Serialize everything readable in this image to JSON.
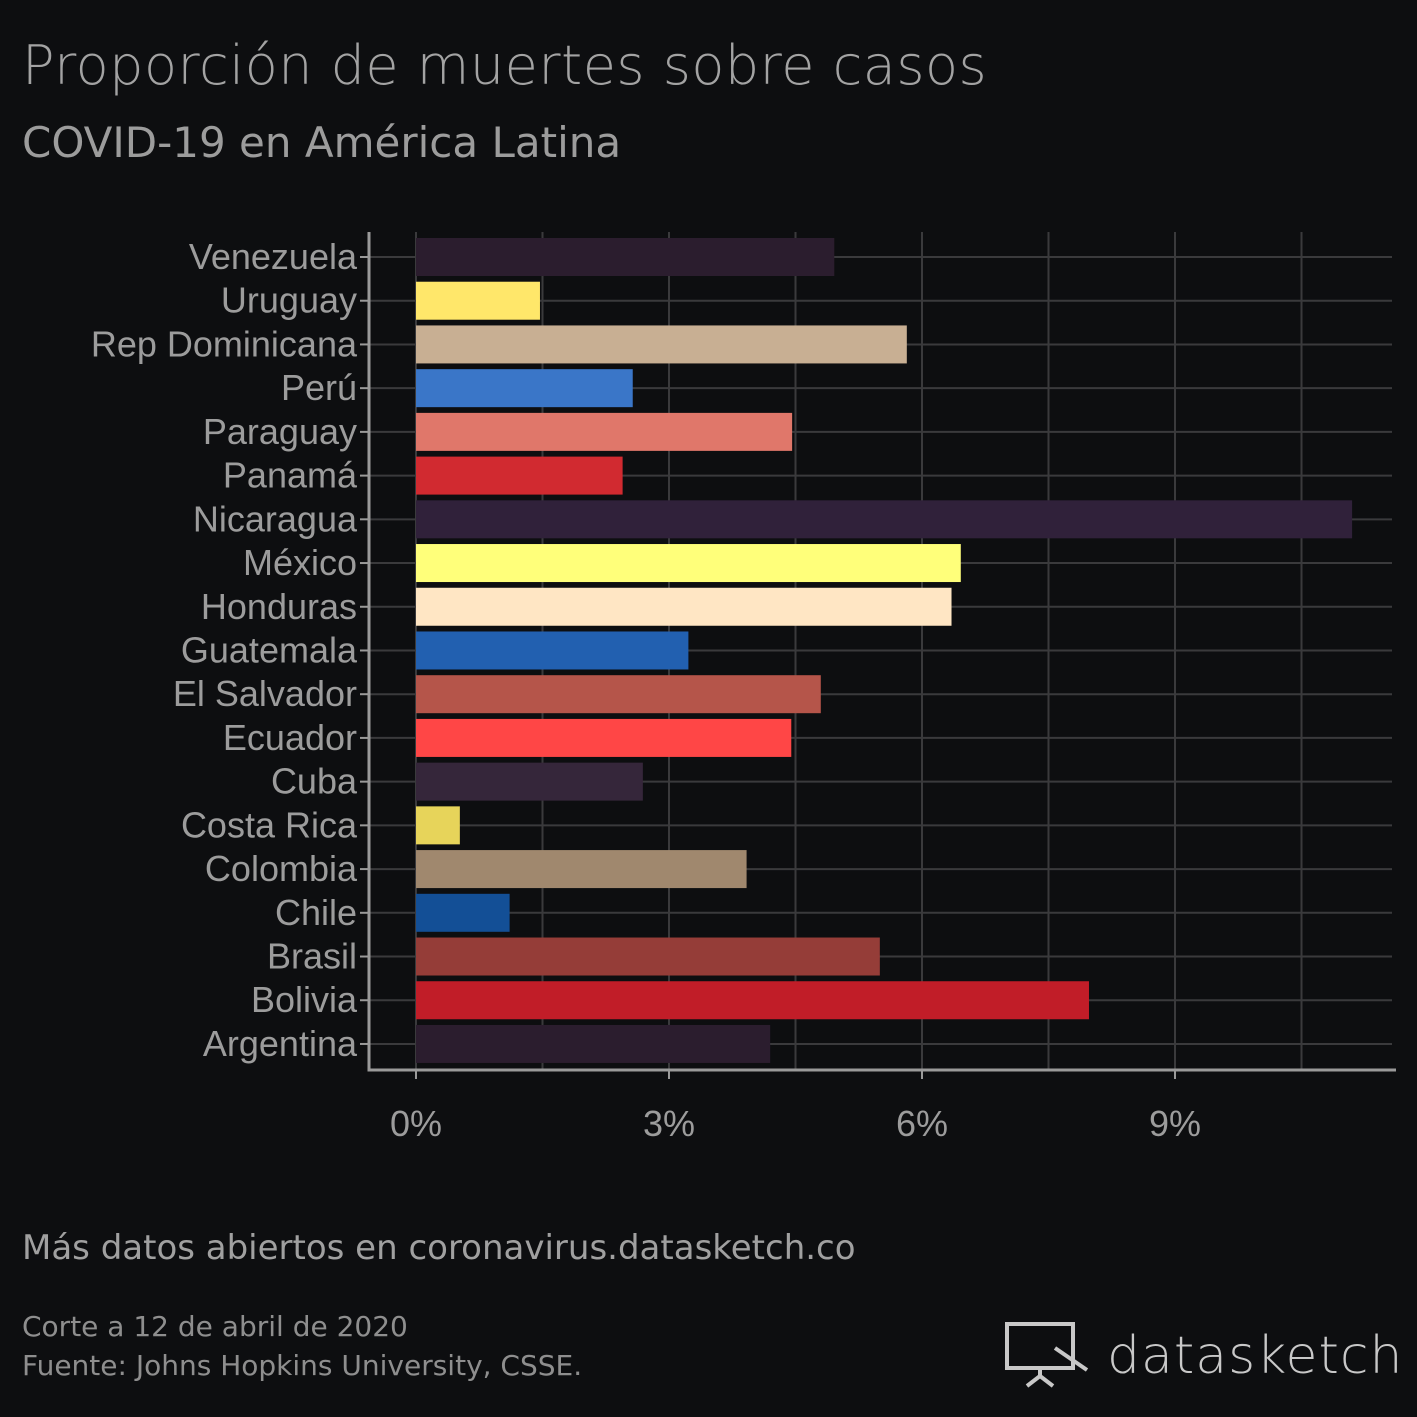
{
  "header": {
    "title": "Proporción de muertes sobre casos",
    "subtitle": "COVID-19 en América Latina"
  },
  "footer": {
    "more_data": "Más datos abiertos en coronavirus.datasketch.co",
    "cut_date": "Corte a 12 de abril de 2020",
    "source": "Fuente: Johns Hopkins University, CSSE.",
    "brand": "datasketch"
  },
  "chart_data": {
    "type": "bar",
    "orientation": "horizontal",
    "title": "Proporción de muertes sobre casos",
    "subtitle": "COVID-19 en América Latina",
    "xlabel": "",
    "ylabel": "",
    "xlim": [
      0,
      11.6
    ],
    "x_ticks": [
      0,
      3,
      6,
      9
    ],
    "x_tick_labels": [
      "0%",
      "3%",
      "6%",
      "9%"
    ],
    "grid": true,
    "categories": [
      "Venezuela",
      "Uruguay",
      "Rep Dominicana",
      "Perú",
      "Paraguay",
      "Panamá",
      "Nicaragua",
      "México",
      "Honduras",
      "Guatemala",
      "El Salvador",
      "Ecuador",
      "Cuba",
      "Costa Rica",
      "Colombia",
      "Chile",
      "Brasil",
      "Bolivia",
      "Argentina"
    ],
    "values": [
      4.96,
      1.47,
      5.82,
      2.57,
      4.46,
      2.45,
      11.1,
      6.46,
      6.35,
      3.23,
      4.8,
      4.45,
      2.69,
      0.52,
      3.92,
      1.11,
      5.5,
      7.98,
      4.2
    ],
    "colors": [
      "#2b1d2e",
      "#ffe76a",
      "#c8af93",
      "#3a76c8",
      "#e0776a",
      "#d12a30",
      "#30213a",
      "#ffff7a",
      "#ffe6c4",
      "#2260b0",
      "#b5554a",
      "#ff4646",
      "#35263a",
      "#e7d45a",
      "#a0886e",
      "#134f96",
      "#953d38",
      "#c11d28",
      "#2b1d2e"
    ]
  }
}
